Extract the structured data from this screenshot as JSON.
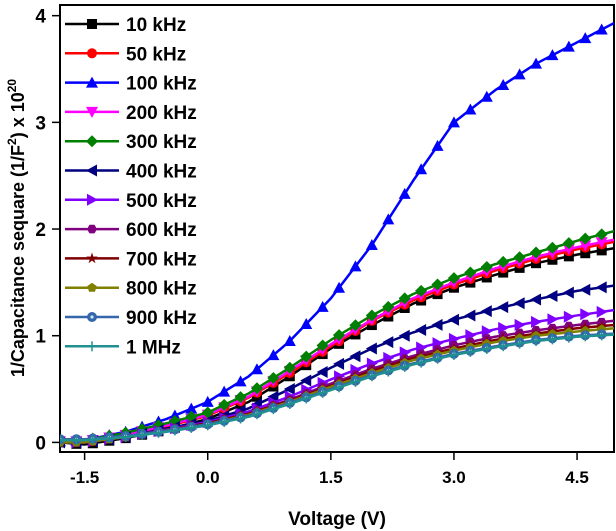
{
  "chart_data": {
    "type": "line",
    "title": "",
    "xlabel": "Voltage (V)",
    "ylabel": "1/Capacitance sequare (1/F²) x 10²⁰",
    "ylabel_parts": {
      "main": "1/Capacitance sequare (1/F",
      "sup1": "2",
      "mid": ") x 10",
      "sup2": "20"
    },
    "xlim": [
      -1.8,
      4.95
    ],
    "ylim": [
      -0.09,
      4.1
    ],
    "xticks": [
      -1.5,
      0.0,
      1.5,
      3.0,
      4.5
    ],
    "xtick_labels": [
      "-1.5",
      "0.0",
      "1.5",
      "3.0",
      "4.5"
    ],
    "yticks": [
      0,
      1,
      2,
      3,
      4
    ],
    "ytick_labels": [
      "0",
      "1",
      "2",
      "3",
      "4"
    ],
    "legend_position": "top-left",
    "x": [
      -1.8,
      -1.5,
      -1.0,
      -0.5,
      0.0,
      0.5,
      1.0,
      1.5,
      2.0,
      2.5,
      3.0,
      3.5,
      4.0,
      4.5,
      4.95
    ],
    "series": [
      {
        "name": "10 kHz",
        "color": "#000000",
        "marker": "square",
        "values": [
          0.0,
          -0.02,
          0.04,
          0.12,
          0.22,
          0.38,
          0.62,
          0.88,
          1.1,
          1.3,
          1.45,
          1.57,
          1.68,
          1.76,
          1.82
        ]
      },
      {
        "name": "50 kHz",
        "color": "#ff0000",
        "marker": "circle",
        "values": [
          0.01,
          0.0,
          0.06,
          0.15,
          0.25,
          0.42,
          0.65,
          0.9,
          1.14,
          1.33,
          1.48,
          1.61,
          1.72,
          1.81,
          1.88
        ]
      },
      {
        "name": "100 kHz",
        "color": "#0000ff",
        "marker": "triangle-up",
        "values": [
          0.01,
          0.02,
          0.1,
          0.22,
          0.38,
          0.62,
          0.95,
          1.35,
          1.85,
          2.45,
          3.0,
          3.3,
          3.55,
          3.75,
          3.93
        ]
      },
      {
        "name": "200 kHz",
        "color": "#ff00ff",
        "marker": "triangle-down",
        "values": [
          0.01,
          0.01,
          0.07,
          0.16,
          0.26,
          0.43,
          0.67,
          0.92,
          1.15,
          1.35,
          1.5,
          1.63,
          1.74,
          1.83,
          1.9
        ]
      },
      {
        "name": "300 kHz",
        "color": "#008000",
        "marker": "diamond",
        "values": [
          0.02,
          0.02,
          0.09,
          0.18,
          0.28,
          0.46,
          0.7,
          0.96,
          1.19,
          1.39,
          1.54,
          1.67,
          1.78,
          1.89,
          1.98
        ]
      },
      {
        "name": "400 kHz",
        "color": "#000080",
        "marker": "triangle-left",
        "values": [
          0.0,
          0.0,
          0.05,
          0.13,
          0.2,
          0.32,
          0.5,
          0.7,
          0.88,
          1.03,
          1.15,
          1.25,
          1.34,
          1.42,
          1.47
        ]
      },
      {
        "name": "500 kHz",
        "color": "#8000ff",
        "marker": "triangle-right",
        "values": [
          0.0,
          0.0,
          0.05,
          0.12,
          0.19,
          0.29,
          0.43,
          0.59,
          0.74,
          0.87,
          0.97,
          1.06,
          1.13,
          1.19,
          1.24
        ]
      },
      {
        "name": "600 kHz",
        "color": "#800080",
        "marker": "hexagon",
        "values": [
          0.0,
          0.0,
          0.05,
          0.12,
          0.18,
          0.27,
          0.4,
          0.55,
          0.69,
          0.81,
          0.91,
          0.99,
          1.05,
          1.1,
          1.14
        ]
      },
      {
        "name": "700 kHz",
        "color": "#800000",
        "marker": "star",
        "values": [
          0.0,
          0.0,
          0.05,
          0.11,
          0.18,
          0.27,
          0.39,
          0.53,
          0.67,
          0.79,
          0.88,
          0.96,
          1.02,
          1.07,
          1.1
        ]
      },
      {
        "name": "800 kHz",
        "color": "#808000",
        "marker": "pentagon",
        "values": [
          0.0,
          0.0,
          0.05,
          0.11,
          0.17,
          0.26,
          0.38,
          0.52,
          0.65,
          0.77,
          0.86,
          0.94,
          1.0,
          1.04,
          1.07
        ]
      },
      {
        "name": "900 kHz",
        "color": "#3366aa",
        "marker": "sphere",
        "values": [
          0.03,
          0.03,
          0.06,
          0.11,
          0.17,
          0.25,
          0.37,
          0.5,
          0.63,
          0.74,
          0.83,
          0.9,
          0.96,
          1.0,
          1.02
        ]
      },
      {
        "name": "1 MHz",
        "color": "#209090",
        "marker": "plus",
        "values": [
          0.02,
          0.02,
          0.05,
          0.1,
          0.16,
          0.24,
          0.36,
          0.49,
          0.62,
          0.73,
          0.82,
          0.89,
          0.95,
          0.99,
          1.01
        ]
      }
    ]
  }
}
